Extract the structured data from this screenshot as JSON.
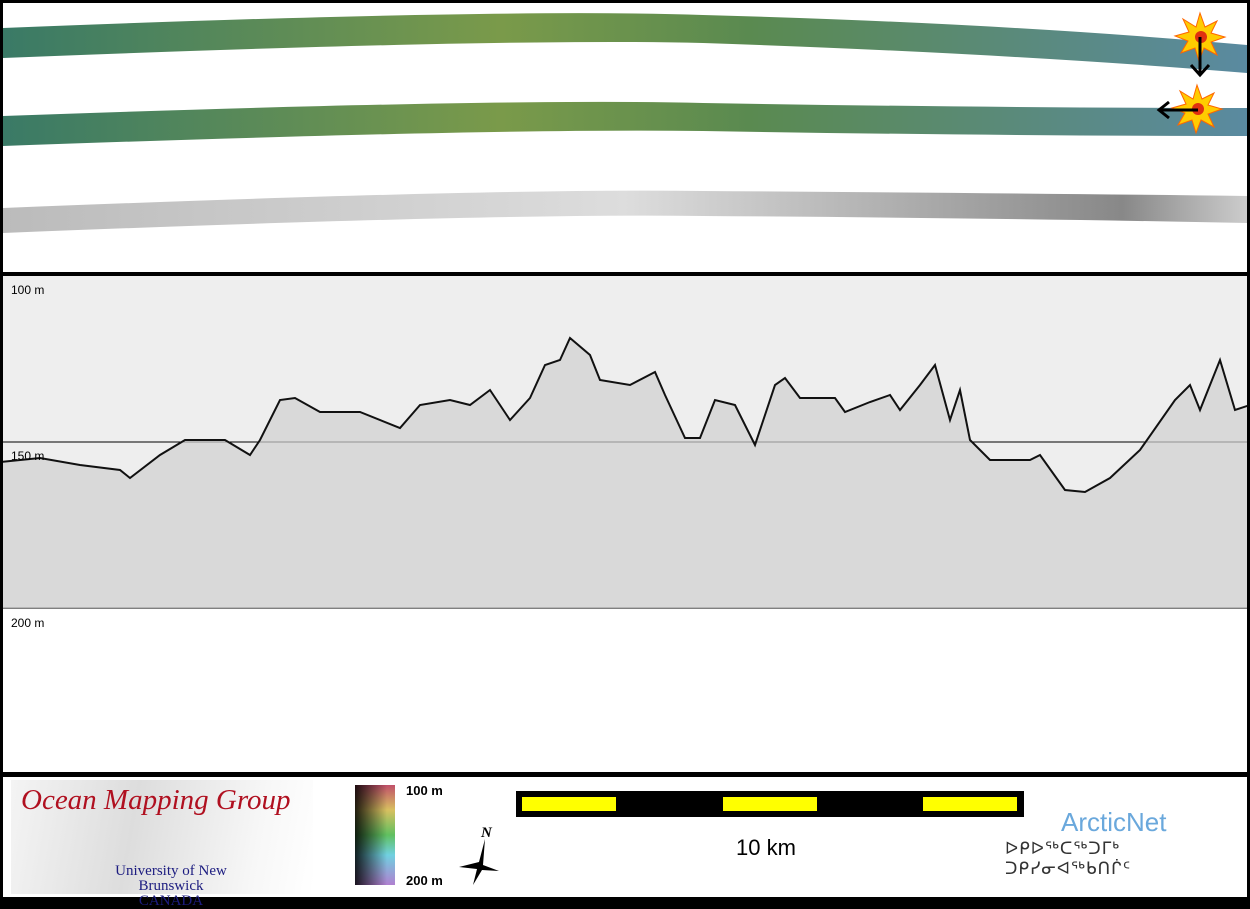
{
  "depth_labels": {
    "top": "100 m",
    "middle": "150 m",
    "bottom": "200 m"
  },
  "legend": {
    "logo_title": "Ocean Mapping Group",
    "logo_university": "University of New Brunswick",
    "logo_country": "CANADA",
    "colorbar_min": "100 m",
    "colorbar_max": "200 m",
    "north_label": "N",
    "scale_label": "10 km",
    "partner_name": "ArcticNet",
    "partner_syllabics": "ᐅᑭᐅᖅᑕᖅᑐᒥᒃ ᑐᑭᓯᓂᐊᖅᑲᑎᒌᑦ"
  },
  "colors": {
    "scale_segment": "#ffff00",
    "marker": "#ffcc00",
    "profile": "#111111"
  }
}
